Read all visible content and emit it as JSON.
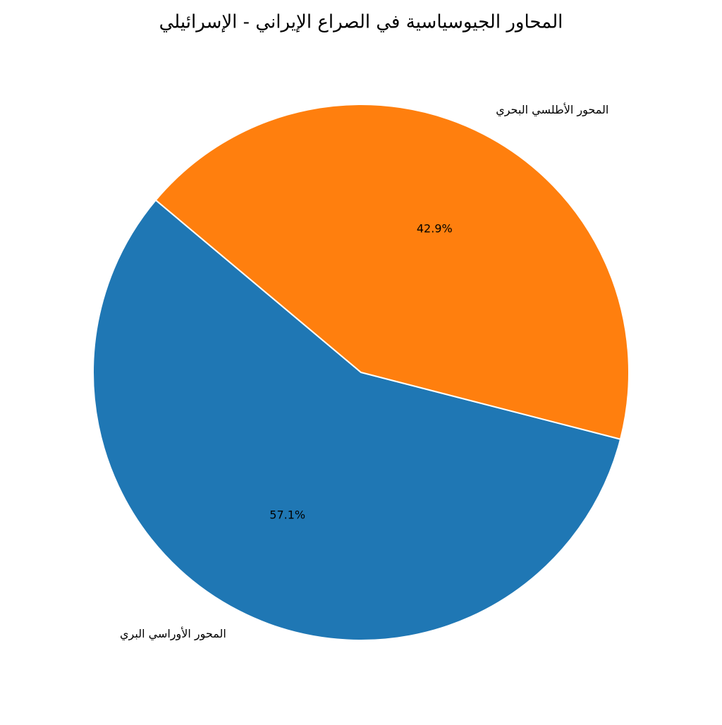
{
  "chart_data": {
    "type": "pie",
    "title": "المحاور الجيوسياسية في الصراع الإيراني - الإسرائيلي",
    "categories": [
      "المحور الأوراسي البري",
      "المحور الأطلسي البحري"
    ],
    "values": [
      57.1,
      42.9
    ],
    "value_labels": [
      "57.1%",
      "42.9%"
    ],
    "colors": [
      "#1f77b4",
      "#ff7f0e"
    ],
    "start_angle": 140
  }
}
